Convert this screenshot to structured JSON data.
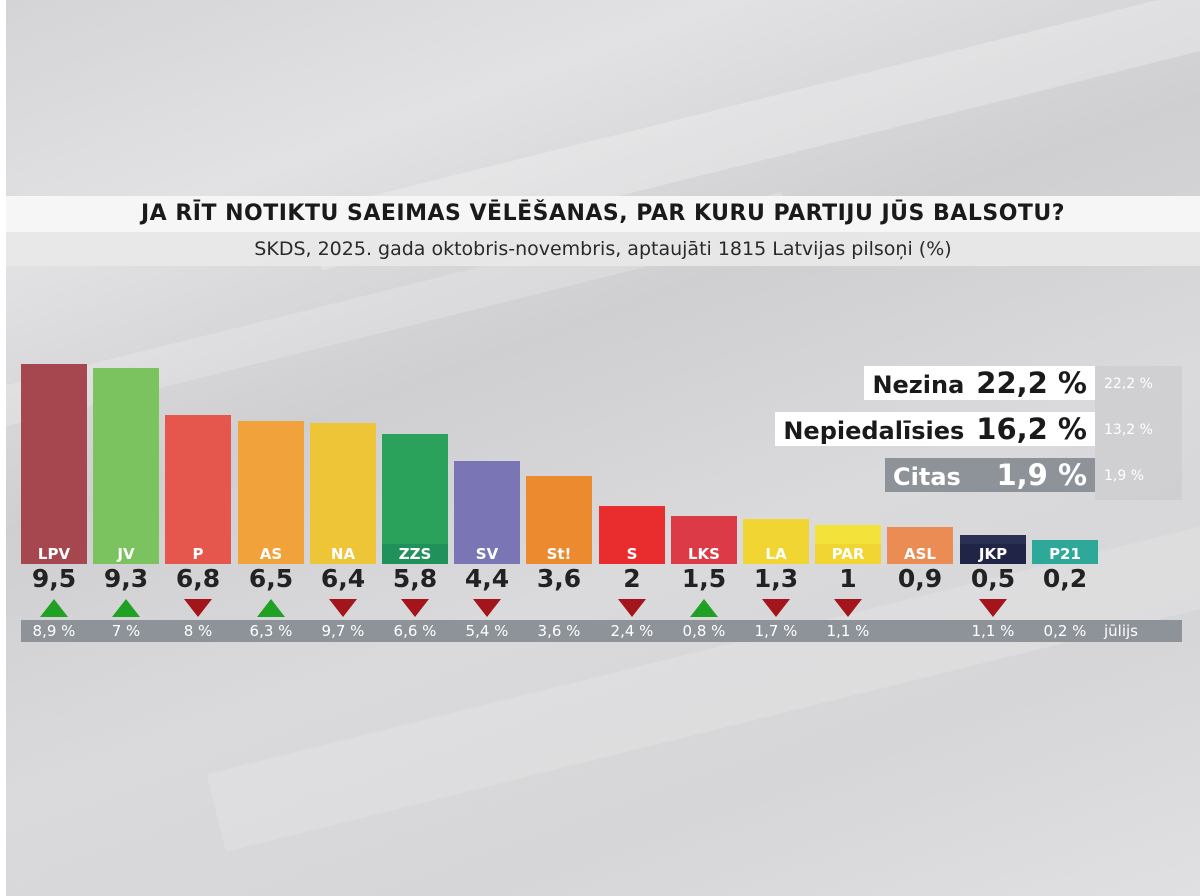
{
  "title": "JA RĪT NOTIKTU SAEIMAS VĒLĒŠANAS, PAR KURU PARTIJU JŪS BALSOTU?",
  "subtitle": "SKDS, 2025. gada oktobris-novembris, aptaujāti 1815 Latvijas pilsoņi (%)",
  "previous_label": "jūlijs",
  "side_stats": [
    {
      "name": "Nezina",
      "value": "22,2 %",
      "previous": "22,2 %",
      "style": "white"
    },
    {
      "name": "Nepiedalīsies",
      "value": "16,2 %",
      "previous": "13,2 %",
      "style": "white"
    },
    {
      "name": "Citas",
      "value": "1,9 %",
      "previous": "1,9 %",
      "style": "grey"
    }
  ],
  "chart_data": {
    "type": "bar",
    "categories": [
      "LPV",
      "JV",
      "P",
      "AS",
      "NA",
      "ZZS",
      "SV",
      "St!",
      "S",
      "LKS",
      "LA",
      "PAR",
      "ASL",
      "JKP",
      "P21"
    ],
    "values": [
      9.5,
      9.3,
      6.8,
      6.5,
      6.4,
      5.8,
      4.4,
      3.6,
      2,
      1.5,
      1.3,
      1,
      0.9,
      0.5,
      0.2
    ],
    "value_labels": [
      "9,5",
      "9,3",
      "6,8",
      "6,5",
      "6,4",
      "5,8",
      "4,4",
      "3,6",
      "2",
      "1,5",
      "1,3",
      "1",
      "0,9",
      "0,5",
      "0,2"
    ],
    "previous_labels": [
      "8,9 %",
      "7 %",
      "8 %",
      "6,3 %",
      "9,7 %",
      "6,6 %",
      "5,4 %",
      "3,6 %",
      "2,4 %",
      "0,8 %",
      "1,7 %",
      "1,1 %",
      "",
      "1,1 %",
      "0,2 %"
    ],
    "trend": [
      "up",
      "up",
      "down",
      "up",
      "down",
      "down",
      "down",
      "",
      "down",
      "up",
      "down",
      "down",
      "",
      "down",
      ""
    ],
    "colors": [
      "#a6464f",
      "#7bc35e",
      "#e5574c",
      "#f2a23a",
      "#eec537",
      "#2ba25c",
      "#7a76b6",
      "#ec8a30",
      "#e92d2f",
      "#dc3a46",
      "#f1d633",
      "#f2e23a",
      "#ec8c55",
      "#2a2f54",
      "#2ea898"
    ],
    "label_colors": [
      "#a6464f",
      "#7bc35e",
      "#e5574c",
      "#f2a23a",
      "#eec537",
      "#20915a",
      "#7a76b6",
      "#ec8a30",
      "#e92d2f",
      "#dc3a46",
      "#f1d633",
      "#f1d633",
      "#ec8c55",
      "#202548",
      "#2ea898"
    ],
    "ylim": [
      0,
      10
    ]
  }
}
